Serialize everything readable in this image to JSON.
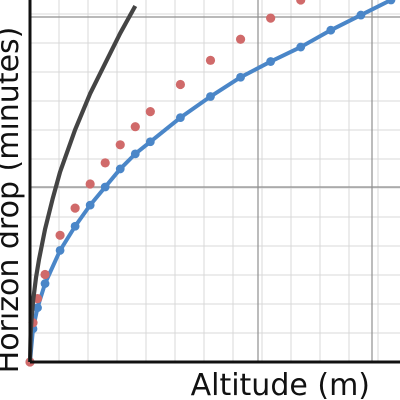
{
  "chart_data": {
    "type": "line",
    "title": "",
    "xlabel": "Altitude (m)",
    "ylabel": "Horizon drop (minutes)",
    "xlim": [
      0,
      12.3
    ],
    "ylim": [
      0,
      6.0
    ],
    "grid": true,
    "series": [
      {
        "style": "solid-line",
        "color": "#444444",
        "points": [
          [
            0,
            0
          ],
          [
            0.02,
            0.45
          ],
          [
            0.05,
            0.7
          ],
          [
            0.1,
            1.0
          ],
          [
            0.2,
            1.4
          ],
          [
            0.3,
            1.7
          ],
          [
            0.5,
            2.2
          ],
          [
            0.75,
            2.7
          ],
          [
            1,
            3.15
          ],
          [
            1.5,
            3.85
          ],
          [
            2,
            4.45
          ],
          [
            2.5,
            4.95
          ],
          [
            3,
            5.45
          ],
          [
            3.5,
            5.9
          ]
        ]
      },
      {
        "style": "dotted",
        "color": "#d06a6a",
        "points": [
          [
            0,
            0
          ],
          [
            0.1,
            0.65
          ],
          [
            0.25,
            1.05
          ],
          [
            0.5,
            1.45
          ],
          [
            1.0,
            2.1
          ],
          [
            1.5,
            2.55
          ],
          [
            2.0,
            2.95
          ],
          [
            2.5,
            3.3
          ],
          [
            3.0,
            3.6
          ],
          [
            3.5,
            3.9
          ],
          [
            4.0,
            4.15
          ],
          [
            5.0,
            4.6
          ],
          [
            6.0,
            5.0
          ],
          [
            7.0,
            5.35
          ],
          [
            8.0,
            5.7
          ],
          [
            9.0,
            6.0
          ]
        ]
      },
      {
        "style": "dot-line",
        "color": "#4a86c8",
        "points": [
          [
            0,
            0
          ],
          [
            0.1,
            0.55
          ],
          [
            0.25,
            0.9
          ],
          [
            0.5,
            1.3
          ],
          [
            1.0,
            1.85
          ],
          [
            1.5,
            2.25
          ],
          [
            2.0,
            2.6
          ],
          [
            2.5,
            2.9
          ],
          [
            3.0,
            3.2
          ],
          [
            3.5,
            3.45
          ],
          [
            4.0,
            3.65
          ],
          [
            5.0,
            4.05
          ],
          [
            6.0,
            4.4
          ],
          [
            7.0,
            4.72
          ],
          [
            8.0,
            4.98
          ],
          [
            9.0,
            5.22
          ],
          [
            10.0,
            5.5
          ],
          [
            11.0,
            5.75
          ],
          [
            12.0,
            6.0
          ]
        ]
      }
    ]
  },
  "colors": {
    "minor_grid": "#d9d9d9",
    "major_grid": "#8f8f8f",
    "axis": "#111111"
  }
}
